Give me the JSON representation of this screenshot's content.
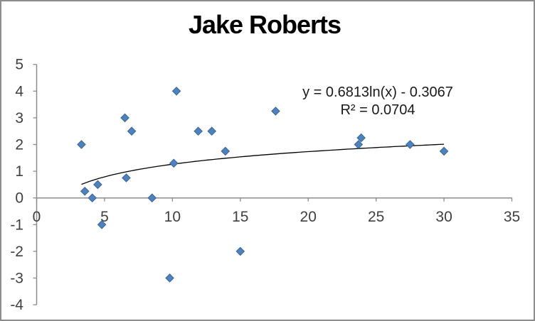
{
  "window": {
    "background": "#ffffff",
    "border_color": "#8d8d8d"
  },
  "chart_data": {
    "type": "scatter",
    "title": "Jake Roberts",
    "series": [
      {
        "name": "Jake Roberts",
        "marker": "diamond",
        "marker_fill": "#4f81bd",
        "marker_border": "#3a6598",
        "points": [
          [
            3.3,
            2
          ],
          [
            3.55,
            0.25
          ],
          [
            4.1,
            0
          ],
          [
            4.5,
            0.5
          ],
          [
            4.8,
            -1
          ],
          [
            6.5,
            3
          ],
          [
            6.6,
            0.75
          ],
          [
            7,
            2.5
          ],
          [
            8.5,
            0
          ],
          [
            9.8,
            -3
          ],
          [
            10.1,
            1.3
          ],
          [
            10.3,
            4
          ],
          [
            11.9,
            2.5
          ],
          [
            12.9,
            2.5
          ],
          [
            13.9,
            1.75
          ],
          [
            15,
            -2
          ],
          [
            17.6,
            3.25
          ],
          [
            23.7,
            2
          ],
          [
            23.9,
            2.25
          ],
          [
            27.5,
            2
          ],
          [
            30,
            1.75
          ]
        ]
      }
    ],
    "trendline": {
      "type": "logarithmic",
      "a": 0.6813,
      "b": -0.3067,
      "equation_label": "y = 0.6813ln(x) - 0.3067",
      "r2_label": "R² = 0.0704",
      "color": "#000000"
    },
    "x_axis": {
      "min": 0,
      "max": 35,
      "tick_step": 5,
      "tick_labels": [
        "0",
        "5",
        "10",
        "15",
        "20",
        "25",
        "30",
        "35"
      ]
    },
    "y_axis": {
      "min": -4,
      "max": 5,
      "tick_step": 1,
      "tick_labels": [
        "-4",
        "-3",
        "-2",
        "-1",
        "0",
        "1",
        "2",
        "3",
        "4",
        "5"
      ]
    },
    "axis_color": "#8c8c8c",
    "tick_label_color": "#404040",
    "grid": false,
    "legend": "none"
  }
}
